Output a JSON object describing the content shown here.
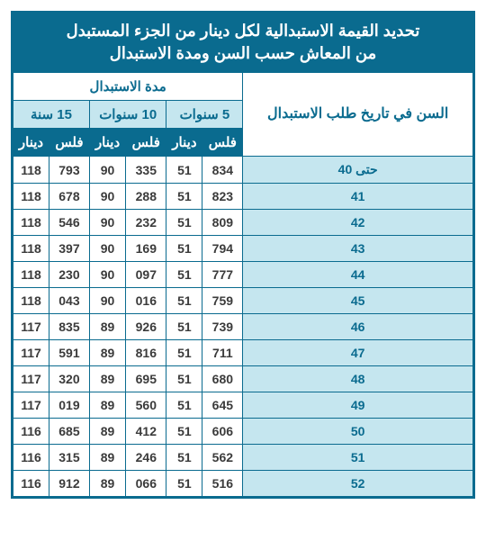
{
  "title_line1": "تحديد القيمة الاستبدالية لكل دينار من الجزء المستبدل",
  "title_line2": "من المعاش حسب السن ومدة الاستبدال",
  "header": {
    "age": "السن في تاريخ طلب الاستبدال",
    "duration": "مدة الاستبدال",
    "periods": [
      "5 سنوات",
      "10 سنوات",
      "15 سنة"
    ],
    "units": {
      "fils": "فلس",
      "dinar": "دينار"
    }
  },
  "rows": [
    {
      "age": "حتى 40",
      "p5f": "834",
      "p5d": "51",
      "p10f": "335",
      "p10d": "90",
      "p15f": "793",
      "p15d": "118"
    },
    {
      "age": "41",
      "p5f": "823",
      "p5d": "51",
      "p10f": "288",
      "p10d": "90",
      "p15f": "678",
      "p15d": "118"
    },
    {
      "age": "42",
      "p5f": "809",
      "p5d": "51",
      "p10f": "232",
      "p10d": "90",
      "p15f": "546",
      "p15d": "118"
    },
    {
      "age": "43",
      "p5f": "794",
      "p5d": "51",
      "p10f": "169",
      "p10d": "90",
      "p15f": "397",
      "p15d": "118"
    },
    {
      "age": "44",
      "p5f": "777",
      "p5d": "51",
      "p10f": "097",
      "p10d": "90",
      "p15f": "230",
      "p15d": "118"
    },
    {
      "age": "45",
      "p5f": "759",
      "p5d": "51",
      "p10f": "016",
      "p10d": "90",
      "p15f": "043",
      "p15d": "118"
    },
    {
      "age": "46",
      "p5f": "739",
      "p5d": "51",
      "p10f": "926",
      "p10d": "89",
      "p15f": "835",
      "p15d": "117"
    },
    {
      "age": "47",
      "p5f": "711",
      "p5d": "51",
      "p10f": "816",
      "p10d": "89",
      "p15f": "591",
      "p15d": "117"
    },
    {
      "age": "48",
      "p5f": "680",
      "p5d": "51",
      "p10f": "695",
      "p10d": "89",
      "p15f": "320",
      "p15d": "117"
    },
    {
      "age": "49",
      "p5f": "645",
      "p5d": "51",
      "p10f": "560",
      "p10d": "89",
      "p15f": "019",
      "p15d": "117"
    },
    {
      "age": "50",
      "p5f": "606",
      "p5d": "51",
      "p10f": "412",
      "p10d": "89",
      "p15f": "685",
      "p15d": "116"
    },
    {
      "age": "51",
      "p5f": "562",
      "p5d": "51",
      "p10f": "246",
      "p10d": "89",
      "p15f": "315",
      "p15d": "116"
    },
    {
      "age": "52",
      "p5f": "516",
      "p5d": "51",
      "p10f": "066",
      "p10d": "89",
      "p15f": "912",
      "p15d": "116"
    }
  ],
  "style": {
    "colors": {
      "primary": "#0a6b8f",
      "light": "#c5e6ef",
      "text": "#3b3b3b",
      "white": "#ffffff"
    }
  }
}
